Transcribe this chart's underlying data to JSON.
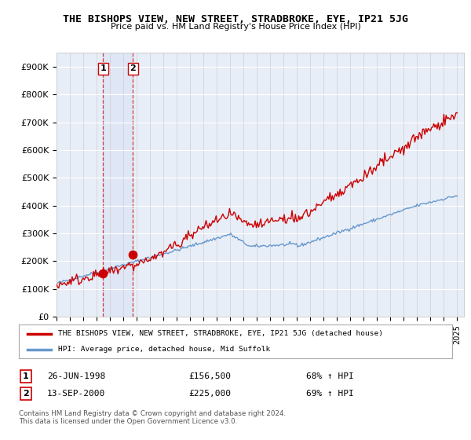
{
  "title": "THE BISHOPS VIEW, NEW STREET, STRADBROKE, EYE, IP21 5JG",
  "subtitle": "Price paid vs. HM Land Registry's House Price Index (HPI)",
  "legend_label_red": "THE BISHOPS VIEW, NEW STREET, STRADBROKE, EYE, IP21 5JG (detached house)",
  "legend_label_blue": "HPI: Average price, detached house, Mid Suffolk",
  "transaction1_label": "26-JUN-1998",
  "transaction1_price": "£156,500",
  "transaction1_hpi": "68% ↑ HPI",
  "transaction2_label": "13-SEP-2000",
  "transaction2_price": "£225,000",
  "transaction2_hpi": "69% ↑ HPI",
  "footer": "Contains HM Land Registry data © Crown copyright and database right 2024.\nThis data is licensed under the Open Government Licence v3.0.",
  "red_color": "#cc0000",
  "blue_color": "#6699cc",
  "background_color": "#ffffff",
  "plot_bg_color": "#e8eef8",
  "ylim": [
    0,
    950000
  ],
  "yticks": [
    0,
    100000,
    200000,
    300000,
    400000,
    500000,
    600000,
    700000,
    800000,
    900000
  ],
  "ytick_labels": [
    "£0",
    "£100K",
    "£200K",
    "£300K",
    "£400K",
    "£500K",
    "£600K",
    "£700K",
    "£800K",
    "£900K"
  ],
  "xlim_start": 1995.0,
  "xlim_end": 2025.5,
  "transaction1_date": 1998.49,
  "transaction1_value": 156500,
  "transaction2_date": 2000.71,
  "transaction2_value": 225000
}
